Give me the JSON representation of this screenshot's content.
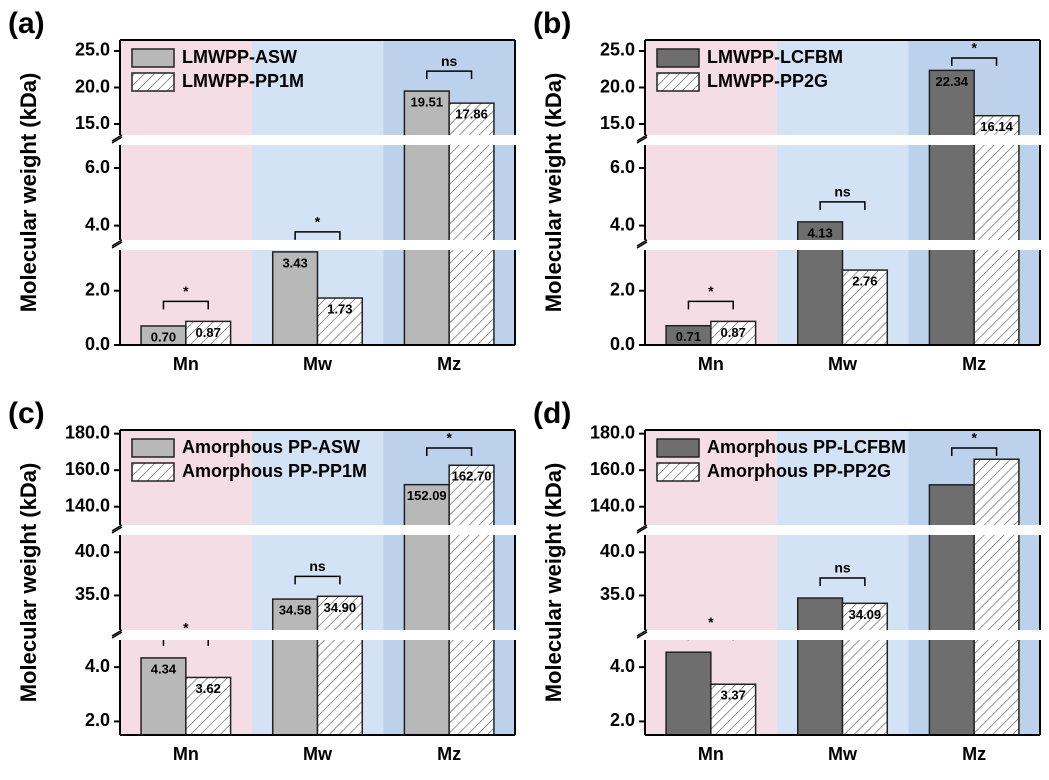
{
  "chart_data": [
    {
      "type": "bar",
      "panel_label": "(a)",
      "y_label": "Molecular weight (kDa)",
      "categories": [
        "Mn",
        "Mw",
        "Mz"
      ],
      "series": [
        {
          "name": "LMWPP-ASW",
          "color": "#b8b8b8",
          "hatch": false,
          "values": [
            0.7,
            3.43,
            19.51
          ],
          "value_labels": [
            "0.70",
            "3.43",
            "19.51"
          ]
        },
        {
          "name": "LMWPP-PP1M",
          "color": "#ffffff",
          "hatch": true,
          "values": [
            0.87,
            1.73,
            17.86
          ],
          "value_labels": [
            "0.87",
            "1.73",
            "17.86"
          ]
        }
      ],
      "significance": [
        "*",
        "*",
        "ns"
      ],
      "y_segments": [
        {
          "ylim": [
            0,
            3.5
          ],
          "yticks": [
            {
              "value": 0,
              "label": "0.0"
            },
            {
              "value": 2,
              "label": "2.0"
            }
          ]
        },
        {
          "ylim": [
            3.5,
            6.8
          ],
          "yticks": [
            {
              "value": 4,
              "label": "4.0"
            },
            {
              "value": 6,
              "label": "6.0"
            }
          ]
        },
        {
          "ylim": [
            13.5,
            26.5
          ],
          "yticks": [
            {
              "value": 15,
              "label": "15.0"
            },
            {
              "value": 20,
              "label": "20.0"
            },
            {
              "value": 25,
              "label": "25.0"
            }
          ]
        }
      ]
    },
    {
      "type": "bar",
      "panel_label": "(b)",
      "y_label": "Molecular weight (kDa)",
      "categories": [
        "Mn",
        "Mw",
        "Mz"
      ],
      "series": [
        {
          "name": "LMWPP-LCFBM",
          "color": "#6e6e6e",
          "hatch": false,
          "values": [
            0.71,
            4.13,
            22.34
          ],
          "value_labels": [
            "0.71",
            "4.13",
            "22.34"
          ]
        },
        {
          "name": "LMWPP-PP2G",
          "color": "#ffffff",
          "hatch": true,
          "values": [
            0.87,
            2.76,
            16.14
          ],
          "value_labels": [
            "0.87",
            "2.76",
            "16.14"
          ]
        }
      ],
      "significance": [
        "*",
        "ns",
        "*"
      ],
      "y_segments": [
        {
          "ylim": [
            0,
            3.5
          ],
          "yticks": [
            {
              "value": 0,
              "label": "0.0"
            },
            {
              "value": 2,
              "label": "2.0"
            }
          ]
        },
        {
          "ylim": [
            3.5,
            6.8
          ],
          "yticks": [
            {
              "value": 4,
              "label": "4.0"
            },
            {
              "value": 6,
              "label": "6.0"
            }
          ]
        },
        {
          "ylim": [
            13.5,
            26.5
          ],
          "yticks": [
            {
              "value": 15,
              "label": "15.0"
            },
            {
              "value": 20,
              "label": "20.0"
            },
            {
              "value": 25,
              "label": "25.0"
            }
          ]
        }
      ]
    },
    {
      "type": "bar",
      "panel_label": "(c)",
      "y_label": "Molecular weight (kDa)",
      "categories": [
        "Mn",
        "Mw",
        "Mz"
      ],
      "series": [
        {
          "name": "Amorphous PP-ASW",
          "color": "#b8b8b8",
          "hatch": false,
          "values": [
            4.34,
            34.58,
            152.09
          ],
          "value_labels": [
            "4.34",
            "34.58",
            "152.09"
          ]
        },
        {
          "name": "Amorphous PP-PP1M",
          "color": "#ffffff",
          "hatch": true,
          "values": [
            3.62,
            34.9,
            162.7
          ],
          "value_labels": [
            "3.62",
            "34.90",
            "162.70"
          ]
        }
      ],
      "significance": [
        "*",
        "ns",
        "*"
      ],
      "y_segments": [
        {
          "ylim": [
            1.5,
            5
          ],
          "yticks": [
            {
              "value": 2,
              "label": "2.0"
            },
            {
              "value": 4,
              "label": "4.0"
            }
          ]
        },
        {
          "ylim": [
            31,
            42
          ],
          "yticks": [
            {
              "value": 35,
              "label": "35.0"
            },
            {
              "value": 40,
              "label": "40.0"
            }
          ]
        },
        {
          "ylim": [
            130,
            182
          ],
          "yticks": [
            {
              "value": 140,
              "label": "140.0"
            },
            {
              "value": 160,
              "label": "160.0"
            },
            {
              "value": 180,
              "label": "180.0"
            }
          ]
        }
      ]
    },
    {
      "type": "bar",
      "panel_label": "(d)",
      "y_label": "Molecular weight (kDa)",
      "categories": [
        "Mn",
        "Mw",
        "Mz"
      ],
      "series": [
        {
          "name": "Amorphous PP-LCFBM",
          "color": "#6e6e6e",
          "hatch": false,
          "values": [
            4.55,
            34.7,
            152
          ],
          "value_labels": [
            null,
            null,
            null
          ]
        },
        {
          "name": "Amorphous PP-PP2G",
          "color": "#ffffff",
          "hatch": true,
          "values": [
            3.37,
            34.09,
            166
          ],
          "value_labels": [
            "3.37",
            "34.09",
            null
          ]
        }
      ],
      "significance": [
        "*",
        "ns",
        "*"
      ],
      "y_segments": [
        {
          "ylim": [
            1.5,
            5
          ],
          "yticks": [
            {
              "value": 2,
              "label": "2.0"
            },
            {
              "value": 4,
              "label": "4.0"
            }
          ]
        },
        {
          "ylim": [
            31,
            42
          ],
          "yticks": [
            {
              "value": 35,
              "label": "35.0"
            },
            {
              "value": 40,
              "label": "40.0"
            }
          ]
        },
        {
          "ylim": [
            130,
            182
          ],
          "yticks": [
            {
              "value": 140,
              "label": "140.0"
            },
            {
              "value": 160,
              "label": "160.0"
            },
            {
              "value": 180,
              "label": "180.0"
            }
          ]
        }
      ]
    }
  ]
}
